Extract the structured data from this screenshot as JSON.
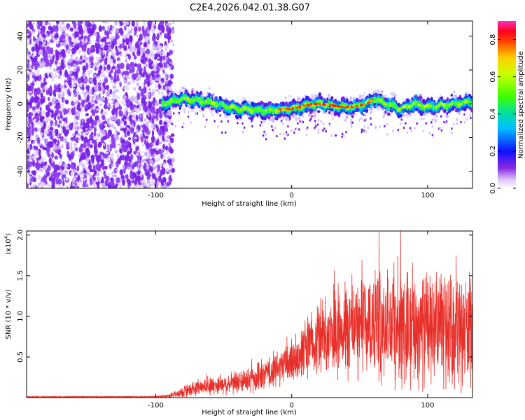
{
  "title": "C2E4.2026.042.01.38.G07",
  "chart_data": [
    {
      "type": "heatmap",
      "title": "C2E4.2026.042.01.38.G07",
      "xlabel": "Height of straight line (km)",
      "ylabel": "Frequency (Hz)",
      "xlim": [
        -195,
        133
      ],
      "ylim": [
        -50,
        49
      ],
      "xticks": [
        -100,
        0,
        100
      ],
      "yticks": [
        -40,
        -20,
        0,
        20,
        40
      ],
      "xtick_labels": [
        "-100",
        "0",
        "100"
      ],
      "ytick_labels": [
        "-40",
        "-20",
        "0",
        "20",
        "40"
      ],
      "noise_region_x": [
        -195,
        -95
      ],
      "signal_region_x": [
        -95,
        133
      ],
      "signal_band_half_width_hz": 6,
      "signal_centerline": {
        "x": [
          -95,
          -80,
          -60,
          -40,
          -20,
          0,
          10,
          20,
          30,
          40,
          50,
          55,
          60,
          70,
          80,
          90,
          100,
          110,
          120,
          133
        ],
        "y": [
          0,
          3,
          1,
          -3,
          -4,
          -3,
          -1,
          0,
          -1,
          -2,
          -1,
          0,
          3,
          0,
          -3,
          0,
          -2,
          -1,
          0,
          1
        ]
      },
      "peak_region_x": [
        -10,
        60
      ],
      "colorbar": {
        "label": "Normalized spectral amplitude",
        "range": [
          0.0,
          0.9
        ],
        "ticks": [
          0.0,
          0.2,
          0.4,
          0.6,
          0.8
        ],
        "tick_labels": [
          "0.0",
          "0.2",
          "0.4",
          "0.6",
          "0.8"
        ],
        "colormap": "rainbow"
      }
    },
    {
      "type": "line",
      "xlabel": "Height of straight line (km)",
      "ylabel": "SNR (10 * v/v)",
      "scale_label": "(x10",
      "scale_exponent": "4",
      "xlim": [
        -195,
        133
      ],
      "ylim": [
        0,
        2.05
      ],
      "xticks": [
        -100,
        0,
        100
      ],
      "xtick_labels": [
        "-100",
        "0",
        "100"
      ],
      "yticks": [
        0.5,
        1.0,
        1.5,
        2.0
      ],
      "ytick_labels": [
        "0.5",
        "1.0",
        "1.5",
        "2.0"
      ],
      "series": [
        {
          "name": "SNR",
          "color": "#e8302a",
          "envelope": {
            "x": [
              -195,
              -100,
              -90,
              -80,
              -70,
              -60,
              -50,
              -40,
              -30,
              -20,
              -10,
              0,
              10,
              20,
              30,
              40,
              50,
              60,
              70,
              80,
              90,
              100,
              110,
              120,
              133
            ],
            "mean": [
              0.01,
              0.01,
              0.02,
              0.06,
              0.12,
              0.14,
              0.16,
              0.18,
              0.21,
              0.27,
              0.36,
              0.45,
              0.6,
              0.75,
              0.82,
              0.86,
              0.88,
              0.9,
              0.88,
              0.86,
              0.87,
              0.85,
              0.84,
              0.82,
              0.8
            ],
            "spread": [
              0.005,
              0.005,
              0.02,
              0.06,
              0.08,
              0.1,
              0.1,
              0.12,
              0.14,
              0.16,
              0.2,
              0.25,
              0.3,
              0.38,
              0.45,
              0.5,
              0.55,
              0.58,
              0.6,
              0.62,
              0.6,
              0.6,
              0.58,
              0.58,
              0.56
            ]
          }
        }
      ]
    }
  ],
  "colors": {
    "line": "#e8302a",
    "noise": "#7a22e6",
    "axis": "#000000"
  }
}
